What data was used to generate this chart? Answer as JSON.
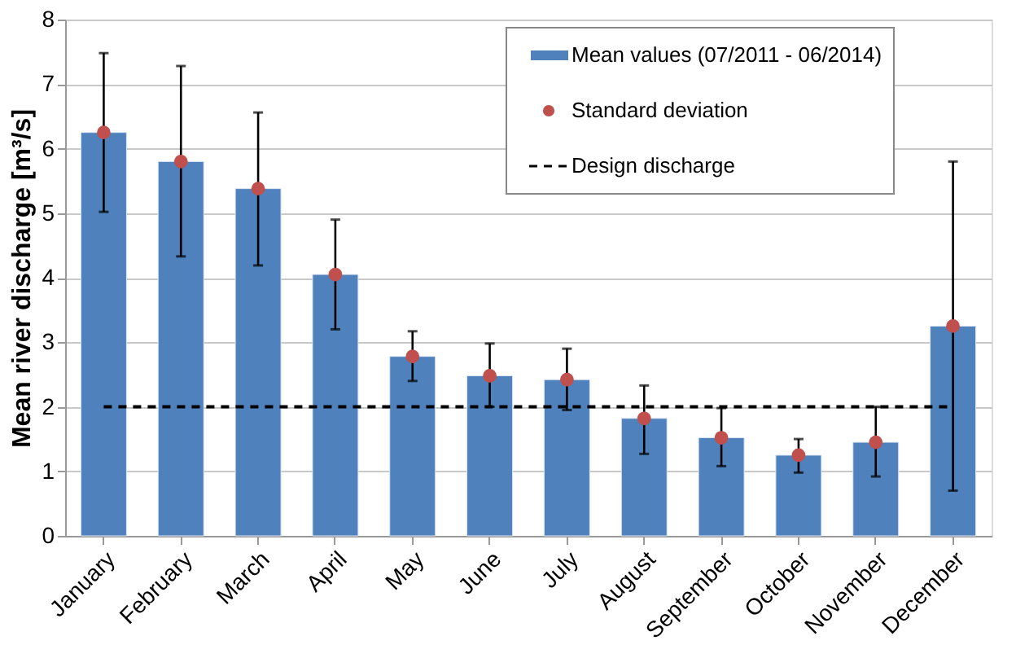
{
  "chart_data": {
    "type": "bar",
    "ylabel": "Mean river discharge [m³/s]",
    "categories": [
      "January",
      "February",
      "March",
      "April",
      "May",
      "June",
      "July",
      "August",
      "September",
      "October",
      "November",
      "December"
    ],
    "series": [
      {
        "name": "Mean values (07/2011 - 06/2014)",
        "color": "#4f81bd",
        "values": [
          6.25,
          5.8,
          5.38,
          4.05,
          2.78,
          2.48,
          2.42,
          1.82,
          1.52,
          1.25,
          1.45,
          3.25
        ]
      },
      {
        "name": "Standard deviation",
        "type": "scatter",
        "color": "#c0504d",
        "marker": "circle",
        "values": [
          6.25,
          5.8,
          5.38,
          4.05,
          2.78,
          2.48,
          2.42,
          1.82,
          1.52,
          1.25,
          1.45,
          3.25
        ],
        "errors": [
          [
            5.02,
            7.48
          ],
          [
            4.33,
            7.28
          ],
          [
            4.19,
            6.56
          ],
          [
            3.2,
            4.9
          ],
          [
            2.4,
            3.17
          ],
          [
            2.0,
            2.98
          ],
          [
            1.95,
            2.9
          ],
          [
            1.27,
            2.33
          ],
          [
            1.08,
            1.98
          ],
          [
            0.98,
            1.5
          ],
          [
            0.92,
            2.0
          ],
          [
            0.7,
            5.8
          ]
        ]
      },
      {
        "name": "Design discharge",
        "type": "line",
        "color": "#000000",
        "line_style": "dashed",
        "values": [
          2,
          2,
          2,
          2,
          2,
          2,
          2,
          2,
          2,
          2,
          2,
          2
        ]
      }
    ],
    "ylim": [
      0,
      8
    ],
    "yticks": [
      0,
      1,
      2,
      3,
      4,
      5,
      6,
      7,
      8
    ],
    "grid": "y",
    "legend": "top right"
  }
}
